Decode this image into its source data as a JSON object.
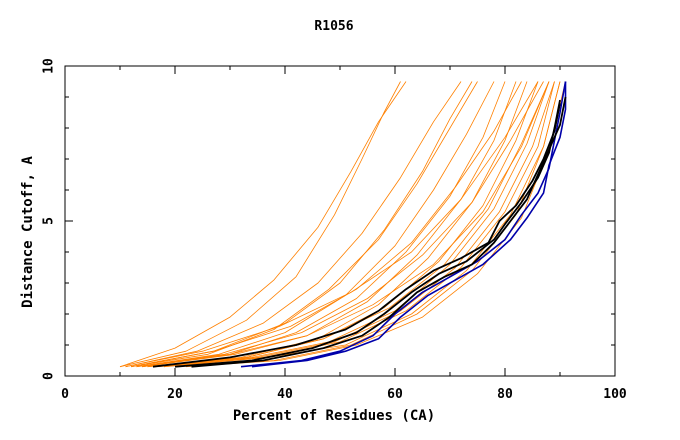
{
  "chart_data": {
    "type": "line",
    "title": "R1056",
    "xlabel": "Percent of Residues (CA)",
    "ylabel": "Distance Cutoff, A",
    "xlim": [
      0,
      100
    ],
    "ylim": [
      0,
      10
    ],
    "x_ticks": [
      "0",
      "20",
      "40",
      "60",
      "80",
      "100"
    ],
    "y_ticks": [
      "0",
      "5",
      "10"
    ],
    "grid": false,
    "colors": {
      "models": "#ff8000",
      "highlight": "#000000",
      "reference": "#0000aa"
    },
    "series_groups": [
      {
        "role": "models",
        "series": [
          {
            "x": [
              10,
              20,
              30,
              38,
              46,
              52,
              57,
              62
            ],
            "y": [
              0.3,
              0.9,
              1.9,
              3.1,
              4.8,
              6.6,
              8.2,
              9.5
            ]
          },
          {
            "x": [
              10,
              22,
              33,
              42,
              49,
              54,
              58,
              61
            ],
            "y": [
              0.3,
              0.8,
              1.8,
              3.2,
              5.2,
              7.0,
              8.5,
              9.5
            ]
          },
          {
            "x": [
              11,
              24,
              36,
              46,
              54,
              61,
              67,
              72
            ],
            "y": [
              0.3,
              0.8,
              1.7,
              3.0,
              4.6,
              6.4,
              8.2,
              9.5
            ]
          },
          {
            "x": [
              12,
              26,
              38,
              48,
              57,
              64,
              70,
              75
            ],
            "y": [
              0.3,
              0.7,
              1.5,
              2.8,
              4.4,
              6.2,
              8.0,
              9.5
            ]
          },
          {
            "x": [
              13,
              28,
              40,
              51,
              60,
              67,
              73,
              78
            ],
            "y": [
              0.3,
              0.7,
              1.4,
              2.6,
              4.2,
              6.0,
              7.8,
              9.5
            ]
          },
          {
            "x": [
              14,
              30,
              42,
              53,
              62,
              70,
              76,
              80
            ],
            "y": [
              0.3,
              0.7,
              1.4,
              2.5,
              4.0,
              5.8,
              7.7,
              9.5
            ]
          },
          {
            "x": [
              14,
              31,
              44,
              55,
              64,
              72,
              78,
              82
            ],
            "y": [
              0.3,
              0.7,
              1.3,
              2.4,
              3.9,
              5.7,
              7.6,
              9.5
            ]
          },
          {
            "x": [
              15,
              32,
              46,
              57,
              66,
              74,
              80,
              84
            ],
            "y": [
              0.3,
              0.6,
              1.2,
              2.3,
              3.8,
              5.6,
              7.6,
              9.5
            ]
          },
          {
            "x": [
              15,
              33,
              47,
              58,
              68,
              76,
              82,
              86
            ],
            "y": [
              0.3,
              0.6,
              1.2,
              2.2,
              3.7,
              5.5,
              7.6,
              9.5
            ]
          },
          {
            "x": [
              16,
              34,
              48,
              60,
              70,
              78,
              84,
              88
            ],
            "y": [
              0.3,
              0.6,
              1.1,
              2.1,
              3.6,
              5.4,
              7.5,
              9.5
            ]
          },
          {
            "x": [
              17,
              36,
              50,
              62,
              72,
              80,
              86,
              89
            ],
            "y": [
              0.3,
              0.6,
              1.1,
              2.1,
              3.5,
              5.3,
              7.4,
              9.5
            ]
          },
          {
            "x": [
              18,
              37,
              51,
              63,
              73,
              81,
              87,
              90
            ],
            "y": [
              0.3,
              0.6,
              1.0,
              2.0,
              3.4,
              5.2,
              7.4,
              9.5
            ]
          },
          {
            "x": [
              20,
              38,
              52,
              64,
              74,
              82,
              87,
              90
            ],
            "y": [
              0.3,
              0.5,
              1.0,
              2.0,
              3.4,
              5.2,
              7.4,
              9.5
            ]
          },
          {
            "x": [
              22,
              39,
              53,
              65,
              75,
              83,
              88,
              91
            ],
            "y": [
              0.3,
              0.5,
              1.0,
              1.9,
              3.3,
              5.1,
              7.3,
              9.5
            ]
          },
          {
            "x": [
              12,
              27,
              41,
              53,
              63,
              71,
              78,
              83
            ],
            "y": [
              0.3,
              0.8,
              1.6,
              2.8,
              4.3,
              6.1,
              7.9,
              9.5
            ]
          },
          {
            "x": [
              11,
              25,
              39,
              52,
              63,
              72,
              80,
              86
            ],
            "y": [
              0.3,
              0.8,
              1.6,
              2.7,
              4.0,
              5.7,
              7.7,
              9.5
            ]
          },
          {
            "x": [
              13,
              29,
              43,
              55,
              65,
              74,
              81,
              87
            ],
            "y": [
              0.3,
              0.7,
              1.4,
              2.5,
              3.9,
              5.6,
              7.6,
              9.5
            ]
          },
          {
            "x": [
              16,
              33,
              47,
              59,
              69,
              77,
              83,
              88
            ],
            "y": [
              0.3,
              0.6,
              1.2,
              2.2,
              3.6,
              5.4,
              7.5,
              9.5
            ]
          },
          {
            "x": [
              18,
              35,
              49,
              61,
              71,
              79,
              85,
              89
            ],
            "y": [
              0.3,
              0.6,
              1.1,
              2.1,
              3.5,
              5.3,
              7.4,
              9.5
            ]
          },
          {
            "x": [
              12,
              27,
              40,
              50,
              58,
              65,
              70,
              74
            ],
            "y": [
              0.3,
              0.8,
              1.7,
              3.0,
              4.7,
              6.6,
              8.3,
              9.5
            ]
          },
          {
            "x": [
              14,
              30,
              44,
              56,
              67,
              76,
              83,
              88
            ],
            "y": [
              0.3,
              0.7,
              1.3,
              2.3,
              3.6,
              5.3,
              7.4,
              9.5
            ]
          }
        ]
      },
      {
        "role": "highlight",
        "series": [
          {
            "x": [
              16,
              30,
              42,
              51,
              57,
              62,
              67,
              72,
              77,
              79,
              82,
              85,
              87,
              89,
              90
            ],
            "y": [
              0.3,
              0.6,
              1.0,
              1.5,
              2.1,
              2.8,
              3.4,
              3.8,
              4.3,
              5.0,
              5.5,
              6.3,
              7.0,
              7.9,
              8.8
            ]
          },
          {
            "x": [
              20,
              34,
              45,
              53,
              58,
              63,
              68,
              73,
              78,
              80,
              83,
              86,
              88,
              89,
              90
            ],
            "y": [
              0.3,
              0.5,
              0.9,
              1.4,
              2.0,
              2.7,
              3.3,
              3.7,
              4.4,
              4.9,
              5.6,
              6.4,
              7.2,
              8.0,
              8.9
            ]
          },
          {
            "x": [
              23,
              36,
              47,
              54,
              59,
              64,
              69,
              74,
              78,
              81,
              84,
              86,
              88,
              90,
              91
            ],
            "y": [
              0.3,
              0.5,
              0.9,
              1.3,
              1.9,
              2.7,
              3.2,
              3.6,
              4.3,
              5.0,
              5.7,
              6.5,
              7.3,
              8.1,
              9.0
            ]
          }
        ]
      },
      {
        "role": "reference",
        "series": [
          {
            "x": [
              32,
              43,
              50,
              56,
              60,
              65,
              70,
              75,
              80,
              83,
              86,
              88,
              89,
              90,
              91
            ],
            "y": [
              0.3,
              0.5,
              0.8,
              1.3,
              2.0,
              2.7,
              3.2,
              3.7,
              4.4,
              5.2,
              5.9,
              6.7,
              7.6,
              8.5,
              9.5
            ]
          },
          {
            "x": [
              34,
              44,
              51,
              57,
              61,
              66,
              71,
              76,
              81,
              84,
              87,
              88,
              90,
              91,
              91
            ],
            "y": [
              0.3,
              0.5,
              0.8,
              1.2,
              1.9,
              2.6,
              3.1,
              3.6,
              4.4,
              5.1,
              5.9,
              6.8,
              7.7,
              8.6,
              9.5
            ]
          }
        ]
      }
    ]
  }
}
